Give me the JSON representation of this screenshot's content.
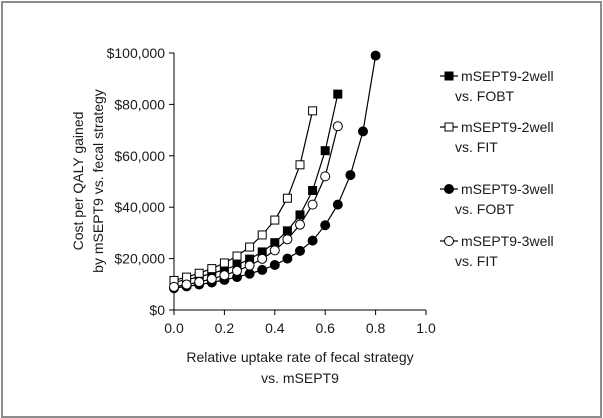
{
  "chart_data": {
    "type": "line",
    "title": "",
    "xlabel_lines": [
      "Relative uptake rate of fecal strategy",
      "vs. mSEPT9"
    ],
    "ylabel_lines": [
      "Cost per QALY gained",
      "by mSEPT9 vs. fecal strategy"
    ],
    "xlim": [
      0,
      1.0
    ],
    "ylim": [
      0,
      100000
    ],
    "x_ticks": [
      0.0,
      0.2,
      0.4,
      0.6,
      0.8,
      1.0
    ],
    "x_tick_labels": [
      "0.0",
      "0.2",
      "0.4",
      "0.6",
      "0.8",
      "1.0"
    ],
    "y_ticks": [
      0,
      20000,
      40000,
      60000,
      80000,
      100000
    ],
    "y_tick_labels": [
      "$0",
      "$20,000",
      "$40,000",
      "$60,000",
      "$80,000",
      "$100,000"
    ],
    "grid": false,
    "legend_position": "right",
    "series": [
      {
        "name_lines": [
          "mSEPT9-2well",
          "vs. FOBT"
        ],
        "marker": "filled-square",
        "x": [
          0.0,
          0.05,
          0.1,
          0.15,
          0.2,
          0.25,
          0.3,
          0.35,
          0.4,
          0.45,
          0.5,
          0.55,
          0.6,
          0.65
        ],
        "y": [
          10800,
          11800,
          12900,
          14200,
          15700,
          17500,
          19800,
          22600,
          26200,
          30800,
          37000,
          46500,
          62000,
          84000
        ]
      },
      {
        "name_lines": [
          "mSEPT9-2well",
          "vs. FIT"
        ],
        "marker": "open-square",
        "x": [
          0.0,
          0.05,
          0.1,
          0.15,
          0.2,
          0.25,
          0.3,
          0.35,
          0.4,
          0.45,
          0.5,
          0.55
        ],
        "y": [
          11500,
          12800,
          14300,
          16100,
          18300,
          21000,
          24500,
          29200,
          35000,
          43500,
          56500,
          77500
        ]
      },
      {
        "name_lines": [
          "mSEPT9-3well",
          "vs. FOBT"
        ],
        "marker": "filled-circle",
        "x": [
          0.0,
          0.05,
          0.1,
          0.15,
          0.2,
          0.25,
          0.3,
          0.35,
          0.4,
          0.45,
          0.5,
          0.55,
          0.6,
          0.65,
          0.7,
          0.75,
          0.8
        ],
        "y": [
          8500,
          9200,
          9900,
          10700,
          11700,
          12800,
          14100,
          15600,
          17500,
          20000,
          23000,
          27000,
          33000,
          41000,
          52500,
          69500,
          99000
        ]
      },
      {
        "name_lines": [
          "mSEPT9-3well",
          "vs. FIT"
        ],
        "marker": "open-circle",
        "x": [
          0.0,
          0.05,
          0.1,
          0.15,
          0.2,
          0.25,
          0.3,
          0.35,
          0.4,
          0.45,
          0.5,
          0.55,
          0.6,
          0.65
        ],
        "y": [
          9000,
          9900,
          10900,
          12100,
          13500,
          15200,
          17300,
          19900,
          23200,
          27500,
          33200,
          41000,
          52000,
          71500
        ]
      }
    ]
  }
}
